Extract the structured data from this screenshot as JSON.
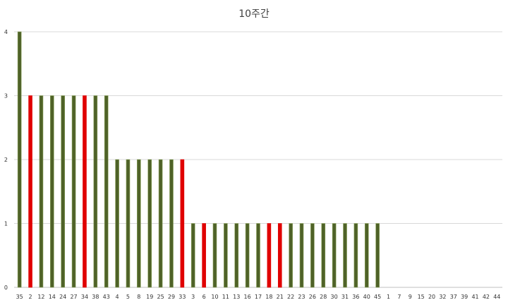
{
  "chart_data": {
    "type": "bar",
    "title": "10주간",
    "xlabel": "",
    "ylabel": "",
    "ylim": [
      0,
      4
    ],
    "yticks": [
      "0",
      "1",
      "2",
      "3",
      "4"
    ],
    "grid": true,
    "legend": "none",
    "colors": {
      "default": "#4f6228",
      "highlight": "#e00000",
      "default_edge": "#8aa35a"
    },
    "categories": [
      "35",
      "2",
      "12",
      "14",
      "24",
      "27",
      "34",
      "38",
      "43",
      "4",
      "5",
      "8",
      "19",
      "25",
      "29",
      "33",
      "3",
      "6",
      "10",
      "11",
      "13",
      "16",
      "17",
      "18",
      "21",
      "22",
      "23",
      "26",
      "28",
      "30",
      "31",
      "36",
      "40",
      "45",
      "1",
      "7",
      "9",
      "15",
      "20",
      "32",
      "37",
      "39",
      "41",
      "42",
      "44"
    ],
    "values": [
      4,
      3,
      3,
      3,
      3,
      3,
      3,
      3,
      3,
      2,
      2,
      2,
      2,
      2,
      2,
      2,
      1,
      1,
      1,
      1,
      1,
      1,
      1,
      1,
      1,
      1,
      1,
      1,
      1,
      1,
      1,
      1,
      1,
      1,
      0,
      0,
      0,
      0,
      0,
      0,
      0,
      0,
      0,
      0,
      0
    ],
    "highlighted": [
      "2",
      "34",
      "33",
      "6",
      "18",
      "21"
    ]
  }
}
